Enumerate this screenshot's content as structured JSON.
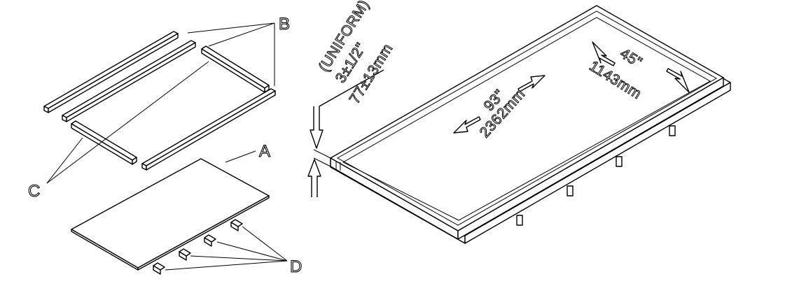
{
  "callouts": {
    "a": "A",
    "b": "B",
    "c": "C",
    "d": "D"
  },
  "dimensions": {
    "height_qualifier": "(UNIFORM)",
    "height_imperial": "3±1/2\"",
    "height_metric": "77±13mm",
    "length_imperial": "93\"",
    "length_metric": "2362mm",
    "width_imperial": "45\"",
    "width_metric": "1143mm"
  }
}
